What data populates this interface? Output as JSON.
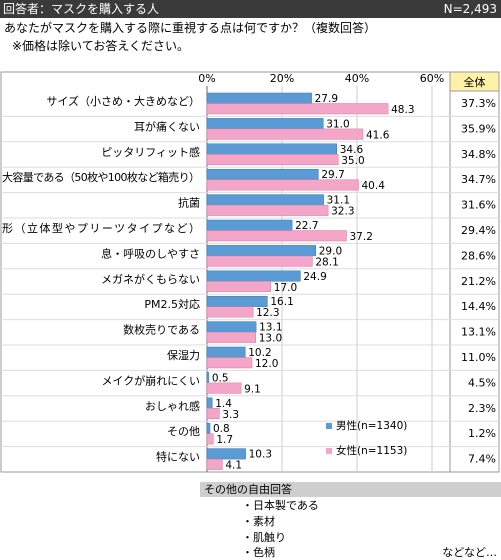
{
  "header": {
    "respondents": "回答者：マスクを購入する人",
    "n_total": "N=2,493"
  },
  "question": "あなたがマスクを購入する際に重視する点は何ですか？（複数回答）",
  "note": "※価格は除いてお答えください。",
  "colors": {
    "male": "#5b9bd5",
    "female": "#f4a6c8",
    "total_header": "#fff2a8",
    "grid": "#cccccc",
    "border": "#999999"
  },
  "chart_data": {
    "type": "bar",
    "orientation": "horizontal",
    "x_ticks": [
      "0%",
      "20%",
      "40%",
      "60%"
    ],
    "xlim": [
      0,
      60
    ],
    "categories": [
      "サイズ（小さめ・大きめなど）",
      "耳が痛くない",
      "ピッタリフィット感",
      "大容量である（50枚や100枚など箱売り）",
      "抗菌",
      "形（立体型やプリーツタイプなど）",
      "息・呼吸のしやすさ",
      "メガネがくもらない",
      "PM2.5対応",
      "数枚売りである",
      "保湿力",
      "メイクが崩れにくい",
      "おしゃれ感",
      "その他",
      "特にない"
    ],
    "series": [
      {
        "name": "男性(n=1340)",
        "values": [
          27.9,
          31.0,
          34.6,
          29.7,
          31.1,
          22.7,
          29.0,
          24.9,
          16.1,
          13.1,
          10.2,
          0.5,
          1.4,
          0.8,
          10.3
        ]
      },
      {
        "name": "女性(n=1153)",
        "values": [
          48.3,
          41.6,
          35.0,
          40.4,
          32.3,
          37.2,
          28.1,
          17.0,
          12.3,
          13.0,
          12.0,
          9.1,
          3.3,
          1.7,
          4.1
        ]
      }
    ],
    "total_header": "全体",
    "total": [
      "37.3%",
      "35.9%",
      "34.8%",
      "34.7%",
      "31.6%",
      "29.4%",
      "28.6%",
      "21.2%",
      "14.4%",
      "13.1%",
      "11.0%",
      "4.5%",
      "2.3%",
      "1.2%",
      "7.4%"
    ],
    "legend": {
      "position": "bottom-right",
      "male": "男性(n=1340)",
      "female": "女性(n=1153)"
    }
  },
  "other_answers": {
    "title": "その他の自由回答",
    "items": [
      "日本製である",
      "素材",
      "肌触り",
      "色柄"
    ],
    "etc": "などなど…"
  }
}
